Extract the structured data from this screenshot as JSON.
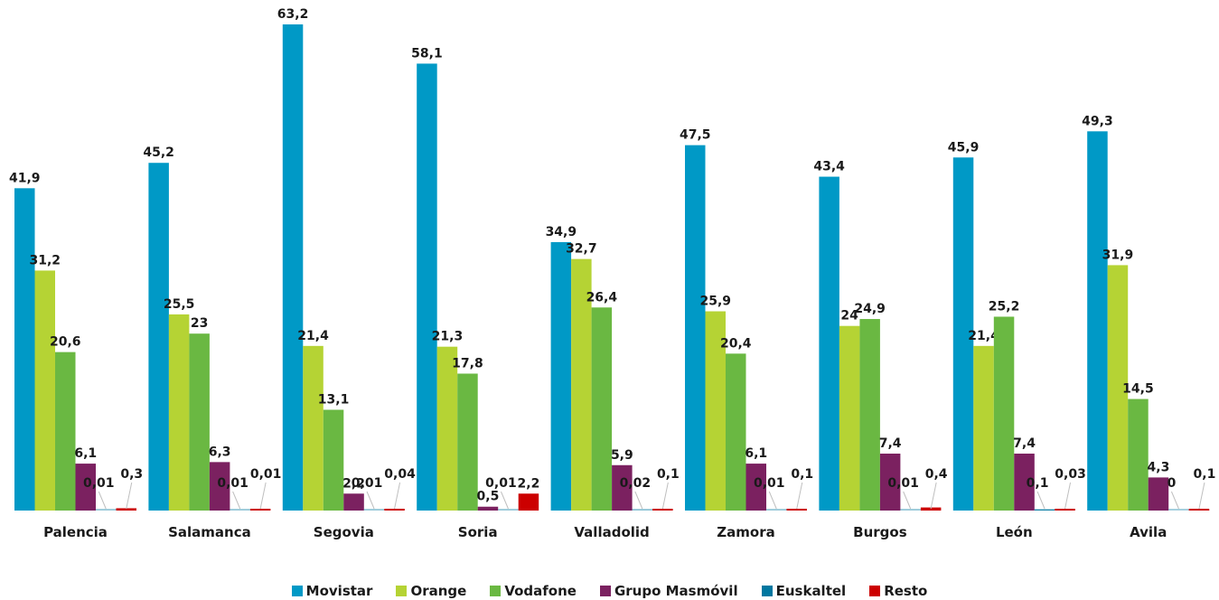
{
  "chart_data": {
    "type": "bar",
    "categories": [
      "Palencia",
      "Salamanca",
      "Segovia",
      "Soria",
      "Valladolid",
      "Zamora",
      "Burgos",
      "León",
      "Avila"
    ],
    "series": [
      {
        "name": "Movistar",
        "color": "#0099c6",
        "values": [
          41.9,
          45.2,
          63.2,
          58.1,
          34.9,
          47.5,
          43.4,
          45.9,
          49.3
        ],
        "labels": [
          "41,9",
          "45,2",
          "63,2",
          "58,1",
          "34,9",
          "47,5",
          "43,4",
          "45,9",
          "49,3"
        ]
      },
      {
        "name": "Orange",
        "color": "#b5d334",
        "values": [
          31.2,
          25.5,
          21.4,
          21.3,
          32.7,
          25.9,
          24,
          21.4,
          31.9
        ],
        "labels": [
          "31,2",
          "25,5",
          "21,4",
          "21,3",
          "32,7",
          "25,9",
          "24",
          "21,4",
          "31,9"
        ]
      },
      {
        "name": "Vodafone",
        "color": "#6ab842",
        "values": [
          20.6,
          23,
          13.1,
          17.8,
          26.4,
          20.4,
          24.9,
          25.2,
          14.5
        ],
        "labels": [
          "20,6",
          "23",
          "13,1",
          "17,8",
          "26,4",
          "20,4",
          "24,9",
          "25,2",
          "14,5"
        ]
      },
      {
        "name": "Grupo Masmóvil",
        "color": "#7b2160",
        "values": [
          6.1,
          6.3,
          2.2,
          0.5,
          5.9,
          6.1,
          7.4,
          7.4,
          4.3
        ],
        "labels": [
          "6,1",
          "6,3",
          "2,2",
          "0,5",
          "5,9",
          "6,1",
          "7,4",
          "7,4",
          "4,3"
        ]
      },
      {
        "name": "Euskaltel",
        "color": "#0077a0",
        "values": [
          0.01,
          0.01,
          0.01,
          0.01,
          0.02,
          0.01,
          0.01,
          0.1,
          0
        ],
        "labels": [
          "0,01",
          "0,01",
          "0,01",
          "0,01",
          "0,02",
          "0,01",
          "0,01",
          "0,1",
          "0"
        ]
      },
      {
        "name": "Resto",
        "color": "#cc0000",
        "values": [
          0.3,
          0.01,
          0.04,
          2.2,
          0.1,
          0.1,
          0.4,
          0.03,
          0.1
        ],
        "labels": [
          "0,3",
          "0,01",
          "0,04",
          "2,2",
          "0,1",
          "0,1",
          "0,4",
          "0,03",
          "0,1"
        ]
      }
    ],
    "ylim": [
      0,
      63.2
    ],
    "grid": false,
    "legend_position": "bottom"
  }
}
